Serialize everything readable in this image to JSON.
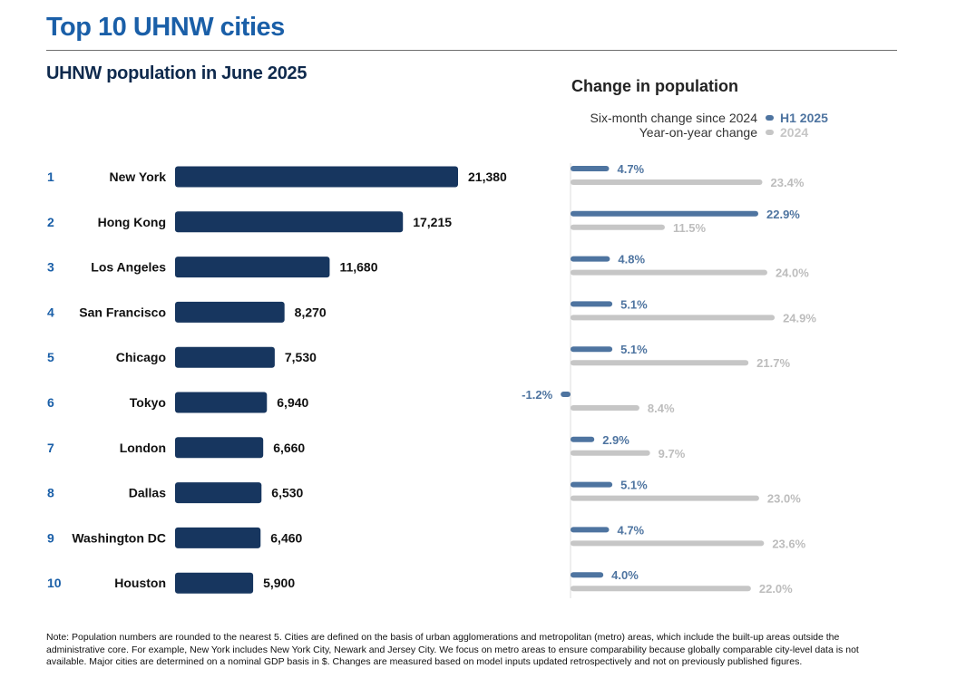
{
  "page": {
    "title": "Top 10 UHNW cities",
    "note": "Note: Population numbers are rounded to the nearest 5. Cities are defined on the basis of urban agglomerations and metropolitan (metro) areas, which include the built-up areas outside the administrative core. For example, New York includes New York City, Newark and Jersey City. We focus on metro areas to ensure comparability because globally comparable city-level data is not available. Major cities are determined on a nominal GDP basis in $. Changes are measured based on model inputs updated retrospectively and not on previously published figures."
  },
  "legend": {
    "h1": {
      "text": "Six-month change since 2024",
      "key": "H1 2025"
    },
    "y24": {
      "text": "Year-on-year change",
      "key": "2024"
    }
  },
  "colors": {
    "title": "#1a5fa8",
    "population_bar": "#17365f",
    "h1_bar": "#4e74a0",
    "y2024_bar": "#c6c6c6",
    "rank": "#1a5fa8"
  },
  "chart_data": [
    {
      "type": "bar",
      "orientation": "horizontal",
      "title": "UHNW population in June 2025",
      "ranks": [
        "1",
        "2",
        "3",
        "4",
        "5",
        "6",
        "7",
        "8",
        "9",
        "10"
      ],
      "categories": [
        "New York",
        "Hong Kong",
        "Los Angeles",
        "San Francisco",
        "Chicago",
        "Tokyo",
        "London",
        "Dallas",
        "Washington DC",
        "Houston"
      ],
      "values": [
        21380,
        17215,
        11680,
        8270,
        7530,
        6940,
        6660,
        6530,
        6460,
        5900
      ],
      "value_labels": [
        "21,380",
        "17,215",
        "11,680",
        "8,270",
        "7,530",
        "6,940",
        "6,660",
        "6,530",
        "6,460",
        "5,900"
      ]
    },
    {
      "type": "bar",
      "orientation": "horizontal",
      "title": "Change in population",
      "categories": [
        "New York",
        "Hong Kong",
        "Los Angeles",
        "San Francisco",
        "Chicago",
        "Tokyo",
        "London",
        "Dallas",
        "Washington DC",
        "Houston"
      ],
      "series": [
        {
          "name": "H1 2025",
          "values": [
            4.7,
            22.9,
            4.8,
            5.1,
            5.1,
            -1.2,
            2.9,
            5.1,
            4.7,
            4.0
          ],
          "labels": [
            "4.7%",
            "22.9%",
            "4.8%",
            "5.1%",
            "5.1%",
            "-1.2%",
            "2.9%",
            "5.1%",
            "4.7%",
            "4.0%"
          ]
        },
        {
          "name": "2024",
          "values": [
            23.4,
            11.5,
            24.0,
            24.9,
            21.7,
            8.4,
            9.7,
            23.0,
            23.6,
            22.0
          ],
          "labels": [
            "23.4%",
            "11.5%",
            "24.0%",
            "24.9%",
            "21.7%",
            "8.4%",
            "9.7%",
            "23.0%",
            "23.6%",
            "22.0%"
          ]
        }
      ]
    }
  ]
}
